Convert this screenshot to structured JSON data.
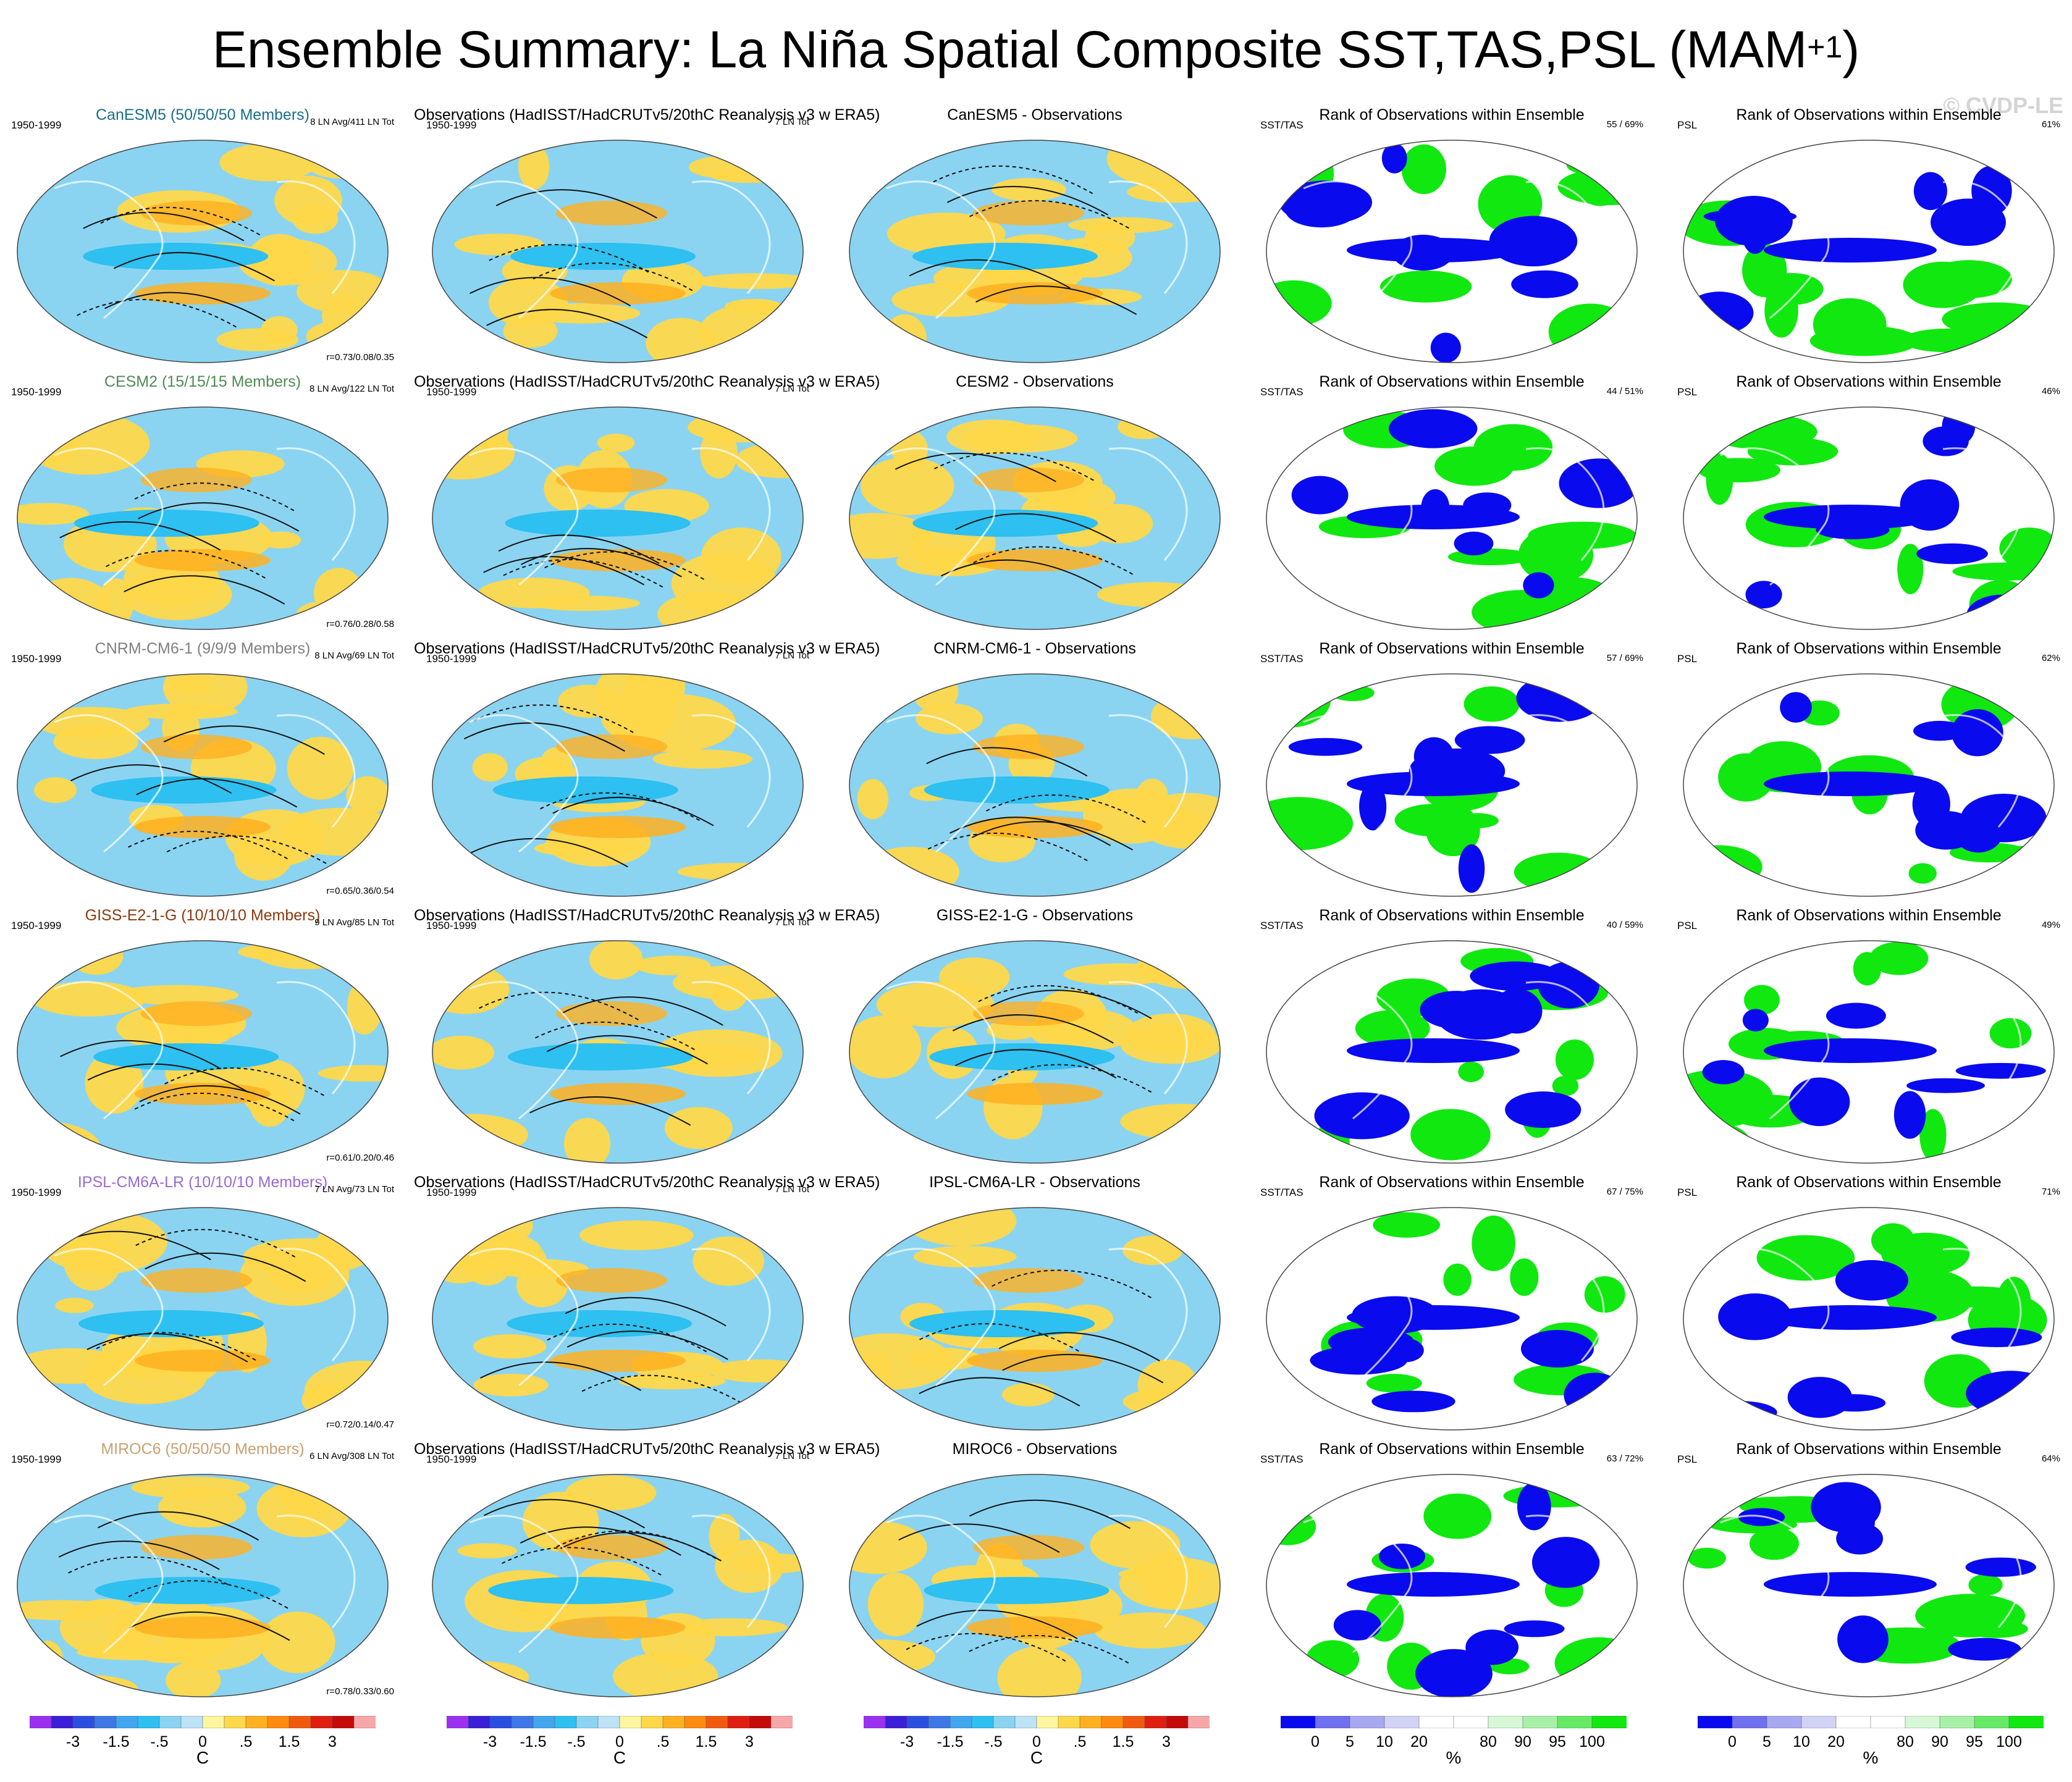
{
  "title": {
    "main": "Ensemble Summary: La Niña Spatial Composite SST,TAS,PSL (MAM",
    "superscript": "+1",
    "close": ")"
  },
  "watermark": "© CVDP-LE",
  "period_label": "1950-1999",
  "obs_title": "Observations (HadISST/HadCRUTv5/20thC Reanalysis v3 w ERA5)",
  "obs_count": "7 LN Tot",
  "rank_title": "Rank of Observations within Ensemble",
  "sst_tas_label": "SST/TAS",
  "psl_label": "PSL",
  "rows": [
    {
      "model_title": "CanESM5 (50/50/50 Members)",
      "model_color": "#1a6e8a",
      "ln_info": "8 LN Avg/411 LN Tot",
      "corr": "r=0.73/0.08/0.35",
      "diff_title": "CanESM5 - Observations",
      "rank_sst": "55 /  69%",
      "rank_psl": "61%"
    },
    {
      "model_title": "CESM2 (15/15/15 Members)",
      "model_color": "#4f8a55",
      "ln_info": "8 LN Avg/122 LN Tot",
      "corr": "r=0.76/0.28/0.58",
      "diff_title": "CESM2 - Observations",
      "rank_sst": "44 /  51%",
      "rank_psl": "46%"
    },
    {
      "model_title": "CNRM-CM6-1 (9/9/9 Members)",
      "model_color": "#7f7f7f",
      "ln_info": "8 LN Avg/69 LN Tot",
      "corr": "r=0.65/0.36/0.54",
      "diff_title": "CNRM-CM6-1 - Observations",
      "rank_sst": "57 /  69%",
      "rank_psl": "62%"
    },
    {
      "model_title": "GISS-E2-1-G (10/10/10 Members)",
      "model_color": "#8b3a0e",
      "ln_info": "9 LN Avg/85 LN Tot",
      "corr": "r=0.61/0.20/0.46",
      "diff_title": "GISS-E2-1-G - Observations",
      "rank_sst": "40 /  59%",
      "rank_psl": "49%"
    },
    {
      "model_title": "IPSL-CM6A-LR (10/10/10 Members)",
      "model_color": "#9a6bd0",
      "ln_info": "7 LN Avg/73 LN Tot",
      "corr": "r=0.72/0.14/0.47",
      "diff_title": "IPSL-CM6A-LR - Observations",
      "rank_sst": "67 /  75%",
      "rank_psl": "71%"
    },
    {
      "model_title": "MIROC6 (50/50/50 Members)",
      "model_color": "#c9a070",
      "ln_info": "6 LN Avg/308 LN Tot",
      "corr": "r=0.78/0.33/0.60",
      "diff_title": "MIROC6 - Observations",
      "rank_sst": "63 /  72%",
      "rank_psl": "64%"
    }
  ],
  "colorbar_temp": {
    "colors": [
      "#9b30f0",
      "#3a1fd6",
      "#2a4fe0",
      "#3d78e6",
      "#41a6ee",
      "#2ec0f0",
      "#8ad4f2",
      "#bde3f6",
      "#fff6a0",
      "#ffd84a",
      "#ffb020",
      "#ff8a10",
      "#f05a10",
      "#e01e10",
      "#c40a0a",
      "#f6a8a8"
    ],
    "tick_labels": [
      "-3",
      "-1.5",
      "-.5",
      "0",
      ".5",
      "1.5",
      "3"
    ],
    "unit": "C"
  },
  "colorbar_rank": {
    "colors": [
      "#0a0aee",
      "#6f6ff0",
      "#a8a8f2",
      "#d2d2f6",
      "#ffffff",
      "#ffffff",
      "#d6f8d6",
      "#a8f0a8",
      "#66ea66",
      "#10e810"
    ],
    "tick_labels": [
      "0",
      "5",
      "10",
      "20",
      "80",
      "90",
      "95",
      "100"
    ],
    "unit": "%"
  },
  "colors": {
    "cool": "#8ad4f2",
    "warm": "#ffd84a",
    "blue_strong": "#2ec0f0",
    "orange": "#ffb020",
    "rank_low": "#0a0aee",
    "rank_high": "#10e810"
  }
}
